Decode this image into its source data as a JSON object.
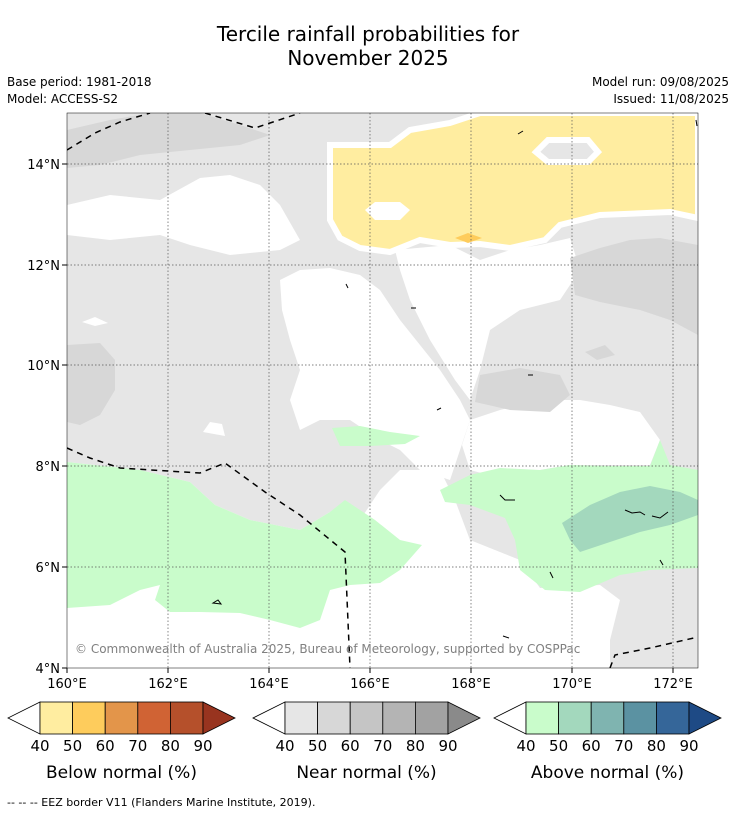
{
  "title": {
    "line1": "Tercile rainfall probabilities for",
    "line2": "November 2025"
  },
  "meta": {
    "base_period": "Base period: 1981-2018",
    "model": "Model: ACCESS-S2",
    "model_run": "Model run: 09/08/2025",
    "issued": "Issued: 11/08/2025"
  },
  "map": {
    "lat_ticks": [
      "14°N",
      "12°N",
      "10°N",
      "8°N",
      "6°N",
      "4°N"
    ],
    "lon_ticks": [
      "160°E",
      "162°E",
      "164°E",
      "166°E",
      "168°E",
      "170°E",
      "172°E"
    ],
    "copyright": "© Commonwealth of Australia 2025, Bureau of Meteorology, supported by COSPPac"
  },
  "legends": [
    {
      "label": "Below normal (%)",
      "ticks": [
        "40",
        "50",
        "60",
        "70",
        "80",
        "90"
      ],
      "colors": [
        "#ffeda0",
        "#fecc5c",
        "#e3954a",
        "#d06334",
        "#b5502b",
        "#98341f"
      ]
    },
    {
      "label": "Near normal (%)",
      "ticks": [
        "40",
        "50",
        "60",
        "70",
        "80",
        "90"
      ],
      "colors": [
        "#e6e6e6",
        "#d7d7d7",
        "#c5c5c5",
        "#b4b4b4",
        "#a2a2a2",
        "#8a8a8a"
      ]
    },
    {
      "label": "Above normal (%)",
      "ticks": [
        "40",
        "50",
        "60",
        "70",
        "80",
        "90"
      ],
      "colors": [
        "#c9fccb",
        "#a3d8bd",
        "#7fb4b0",
        "#5b92a2",
        "#356699",
        "#1e4a85"
      ]
    }
  ],
  "footnote": "--  --  -- EEZ border V11 (Flanders Marine Institute, 2019).",
  "palette": {
    "near_normal_fill": "#e6e6e6",
    "near_normal_50_fill": "#d7d7d7",
    "below_normal_fill": "#ffeda0",
    "below_normal_50_fill": "#fecc5c",
    "above_normal_fill": "#c9fccb",
    "above_normal_50_fill": "#a3d8bd"
  }
}
